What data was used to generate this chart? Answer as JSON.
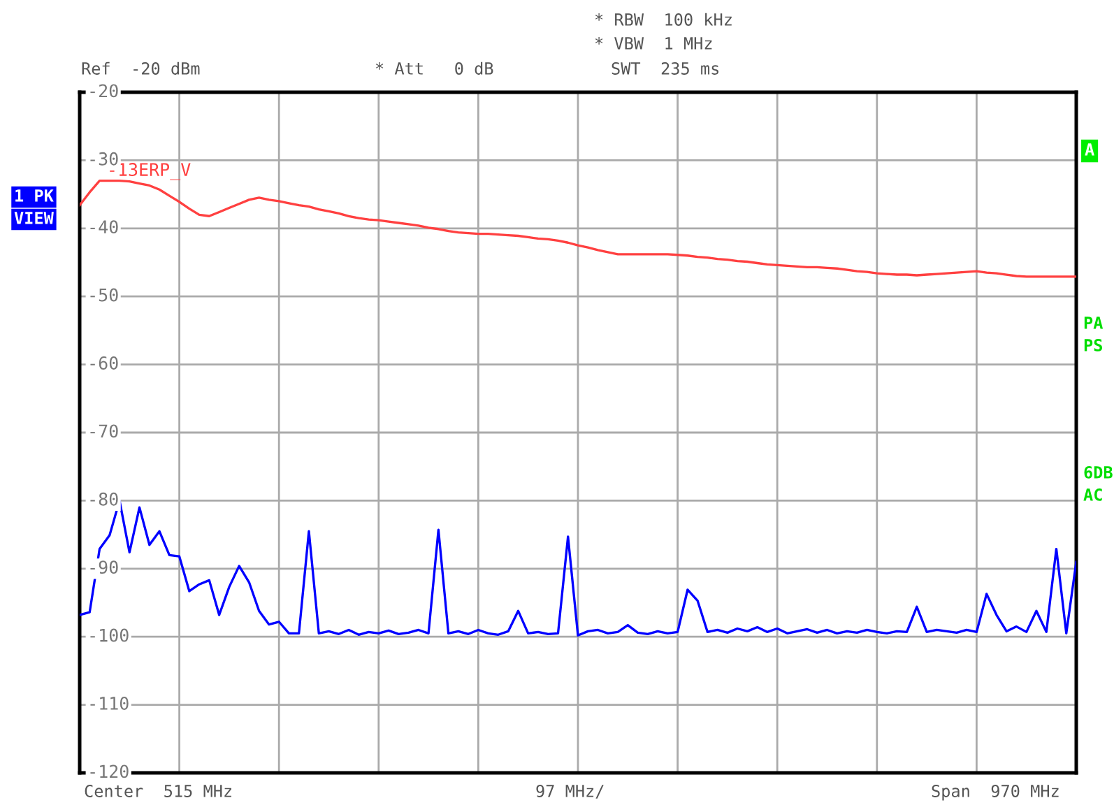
{
  "chart_data": {
    "type": "line",
    "categories": [
      null,
      null,
      null,
      null,
      null,
      null,
      null,
      null,
      null,
      null,
      null,
      null,
      null,
      null,
      null,
      null,
      null,
      null,
      null,
      null,
      null,
      null,
      null,
      null,
      null,
      null,
      null,
      null,
      null,
      null,
      null,
      null,
      null,
      null,
      null,
      null,
      null,
      null,
      null,
      null,
      null,
      null,
      null,
      null,
      null,
      null,
      null,
      null,
      null,
      null,
      null,
      null,
      null,
      null,
      null,
      null,
      null,
      null,
      null,
      null,
      null,
      null,
      null,
      null,
      null,
      null,
      null,
      null,
      null,
      null,
      null,
      null,
      null,
      null,
      null,
      null,
      null,
      null,
      null,
      null,
      null,
      null,
      null,
      null,
      null,
      null,
      null,
      null,
      null,
      null,
      null,
      null,
      null,
      null,
      null,
      null,
      null,
      null,
      null,
      null,
      null
    ],
    "ylim": [
      -120,
      -20
    ],
    "yticks": [
      -20,
      -30,
      -40,
      -50,
      -60,
      -70,
      -80,
      -90,
      -100,
      -110,
      -120
    ],
    "tick_labels": "y",
    "grid": true,
    "line_style": "solid",
    "marker": "none",
    "series": [
      {
        "name": "-13ERP_V",
        "color": "#ff4040",
        "values": [
          -36.6,
          -34.7,
          -33.0,
          -33.0,
          -33.0,
          -33.1,
          -33.4,
          -33.7,
          -34.3,
          -35.2,
          -36.1,
          -37.1,
          -38.0,
          -38.2,
          -37.6,
          -37.0,
          -36.4,
          -35.8,
          -35.5,
          -35.8,
          -36.0,
          -36.3,
          -36.6,
          -36.8,
          -37.2,
          -37.5,
          -37.8,
          -38.2,
          -38.5,
          -38.7,
          -38.8,
          -39.0,
          -39.2,
          -39.4,
          -39.6,
          -39.9,
          -40.1,
          -40.4,
          -40.6,
          -40.7,
          -40.8,
          -40.8,
          -40.9,
          -41.0,
          -41.1,
          -41.3,
          -41.5,
          -41.6,
          -41.8,
          -42.1,
          -42.5,
          -42.8,
          -43.2,
          -43.5,
          -43.8,
          -43.8,
          -43.8,
          -43.8,
          -43.8,
          -43.8,
          -43.9,
          -44.0,
          -44.2,
          -44.3,
          -44.5,
          -44.6,
          -44.8,
          -44.9,
          -45.1,
          -45.3,
          -45.4,
          -45.5,
          -45.6,
          -45.7,
          -45.7,
          -45.8,
          -45.9,
          -46.1,
          -46.3,
          -46.4,
          -46.6,
          -46.7,
          -46.8,
          -46.8,
          -46.9,
          -46.8,
          -46.7,
          -46.6,
          -46.5,
          -46.4,
          -46.3,
          -46.5,
          -46.6,
          -46.8,
          -47.0,
          -47.1,
          -47.1,
          -47.1,
          -47.1,
          -47.1,
          -47.1
        ]
      },
      {
        "color": "#0000ff",
        "values": [
          -96.8,
          -96.4,
          -87.1,
          -85.1,
          -80,
          -87.6,
          -81,
          -86.5,
          -84.5,
          -88,
          -88.2,
          -93.3,
          -92.3,
          -91.7,
          -96.8,
          -92.7,
          -89.6,
          -92,
          -96.2,
          -98.2,
          -97.8,
          -99.5,
          -99.5,
          -84.5,
          -99.5,
          -99.2,
          -99.6,
          -99.0,
          -99.7,
          -99.3,
          -99.5,
          -99.1,
          -99.6,
          -99.4,
          -99.0,
          -99.5,
          -84.3,
          -99.5,
          -99.2,
          -99.6,
          -99.0,
          -99.5,
          -99.7,
          -99.2,
          -96.2,
          -99.5,
          -99.3,
          -99.6,
          -99.5,
          -85.3,
          -99.8,
          -99.2,
          -99.0,
          -99.5,
          -99.3,
          -98.3,
          -99.4,
          -99.6,
          -99.2,
          -99.5,
          -99.3,
          -93.1,
          -94.7,
          -99.3,
          -99.0,
          -99.4,
          -98.8,
          -99.2,
          -98.6,
          -99.3,
          -98.8,
          -99.5,
          -99.2,
          -98.9,
          -99.4,
          -99.0,
          -99.5,
          -99.2,
          -99.4,
          -99.0,
          -99.3,
          -99.5,
          -99.2,
          -99.3,
          -95.6,
          -99.3,
          -99.0,
          -99.2,
          -99.4,
          -99.0,
          -99.3,
          -93.7,
          -96.8,
          -99.2,
          -98.5,
          -99.3,
          -96.2,
          -99.3,
          -87.1,
          -99.5,
          -89
        ]
      }
    ],
    "annotations": [
      "Ref  -20 dBm",
      "* Att   0 dB",
      "* RBW  100 kHz",
      "* VBW  1 MHz",
      "SWT  235 ms",
      "1 PK",
      "VIEW",
      "A",
      "PA",
      "PS",
      "6DB",
      "AC",
      "Center  515 MHz",
      "97 MHz/",
      "Span  970 MHz"
    ]
  }
}
